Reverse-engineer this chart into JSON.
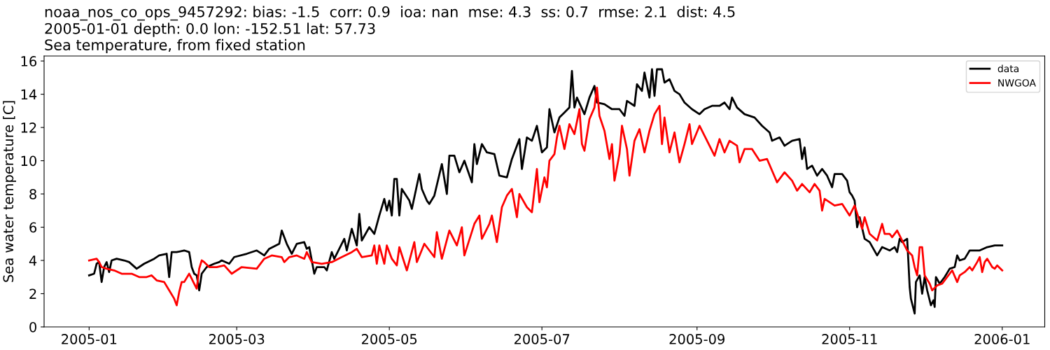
{
  "chart_data": {
    "type": "line",
    "title": "noaa_nos_co_ops_9457292: bias: -1.5  corr: 0.9  ioa: nan  mse: 4.3  ss: 0.7  rmse: 2.1  dist: 4.5\n2005-01-01 depth: 0.0 lon: -152.51 lat: 57.73\nSea temperature, from fixed station",
    "ylabel": "Sea water temperature [C]",
    "xlim": [
      "2004-12-14",
      "2006-01-18"
    ],
    "xticks": [
      {
        "value": "2005-01-01",
        "label": "2005-01"
      },
      {
        "value": "2005-03-01",
        "label": "2005-03"
      },
      {
        "value": "2005-05-01",
        "label": "2005-05"
      },
      {
        "value": "2005-07-01",
        "label": "2005-07"
      },
      {
        "value": "2005-09-01",
        "label": "2005-09"
      },
      {
        "value": "2005-11-01",
        "label": "2005-11"
      },
      {
        "value": "2006-01-01",
        "label": "2006-01"
      }
    ],
    "ylim": [
      0,
      16.3
    ],
    "yticks": [
      0,
      2,
      4,
      6,
      8,
      10,
      12,
      14,
      16
    ],
    "legend": "top right",
    "series": [
      {
        "name": "data",
        "color": "#000000",
        "x": [
          "2005-01-01",
          "2005-01-03",
          "2005-01-04",
          "2005-01-05",
          "2005-01-06",
          "2005-01-07",
          "2005-01-08",
          "2005-01-09",
          "2005-01-10",
          "2005-01-12",
          "2005-01-15",
          "2005-01-17",
          "2005-01-20",
          "2005-01-23",
          "2005-01-27",
          "2005-01-29",
          "2005-02-01",
          "2005-02-02",
          "2005-02-03",
          "2005-02-05",
          "2005-02-08",
          "2005-02-10",
          "2005-02-11",
          "2005-02-12",
          "2005-02-13",
          "2005-02-14",
          "2005-02-15",
          "2005-02-17",
          "2005-02-20",
          "2005-02-22",
          "2005-02-23",
          "2005-02-26",
          "2005-02-28",
          "2005-03-05",
          "2005-03-09",
          "2005-03-12",
          "2005-03-14",
          "2005-03-18",
          "2005-03-19",
          "2005-03-21",
          "2005-03-23",
          "2005-03-25",
          "2005-03-28",
          "2005-03-29",
          "2005-03-30",
          "2005-04-01",
          "2005-04-02",
          "2005-04-05",
          "2005-04-06",
          "2005-04-08",
          "2005-04-09",
          "2005-04-13",
          "2005-04-14",
          "2005-04-16",
          "2005-04-18",
          "2005-04-19",
          "2005-04-20",
          "2005-04-23",
          "2005-04-25",
          "2005-04-27",
          "2005-04-29",
          "2005-04-30",
          "2005-05-01",
          "2005-05-02",
          "2005-05-03",
          "2005-05-04",
          "2005-05-05",
          "2005-05-06",
          "2005-05-09",
          "2005-05-10",
          "2005-05-13",
          "2005-05-14",
          "2005-05-16",
          "2005-05-17",
          "2005-05-19",
          "2005-05-22",
          "2005-05-24",
          "2005-05-25",
          "2005-05-27",
          "2005-05-29",
          "2005-05-31",
          "2005-06-03",
          "2005-06-04",
          "2005-06-05",
          "2005-06-07",
          "2005-06-09",
          "2005-06-12",
          "2005-06-14",
          "2005-06-17",
          "2005-06-19",
          "2005-06-22",
          "2005-06-23",
          "2005-06-25",
          "2005-06-27",
          "2005-06-29",
          "2005-07-01",
          "2005-07-03",
          "2005-07-04",
          "2005-07-06",
          "2005-07-08",
          "2005-07-10",
          "2005-07-12",
          "2005-07-13",
          "2005-07-14",
          "2005-07-15",
          "2005-07-18",
          "2005-07-20",
          "2005-07-22",
          "2005-07-23",
          "2005-07-26",
          "2005-07-29",
          "2005-08-01",
          "2005-08-03",
          "2005-08-04",
          "2005-08-07",
          "2005-08-08",
          "2005-08-10",
          "2005-08-11",
          "2005-08-13",
          "2005-08-14",
          "2005-08-15",
          "2005-08-16",
          "2005-08-18",
          "2005-08-19",
          "2005-08-21",
          "2005-08-23",
          "2005-08-25",
          "2005-08-27",
          "2005-08-30",
          "2005-09-02",
          "2005-09-04",
          "2005-09-07",
          "2005-09-10",
          "2005-09-12",
          "2005-09-14",
          "2005-09-15",
          "2005-09-17",
          "2005-09-20",
          "2005-09-24",
          "2005-09-27",
          "2005-09-30",
          "2005-10-01",
          "2005-10-04",
          "2005-10-06",
          "2005-10-09",
          "2005-10-12",
          "2005-10-13",
          "2005-10-14",
          "2005-10-15",
          "2005-10-17",
          "2005-10-19",
          "2005-10-21",
          "2005-10-23",
          "2005-10-25",
          "2005-10-26",
          "2005-10-29",
          "2005-10-31",
          "2005-11-01",
          "2005-11-02",
          "2005-11-03",
          "2005-11-04",
          "2005-11-05",
          "2005-11-07",
          "2005-11-09",
          "2005-11-12",
          "2005-11-14",
          "2005-11-17",
          "2005-11-19",
          "2005-11-20",
          "2005-11-21",
          "2005-11-22",
          "2005-11-24",
          "2005-11-24T12:00",
          "2005-11-25",
          "2005-11-25T12:00",
          "2005-11-27",
          "2005-11-27T12:00",
          "2005-11-29",
          "2005-11-30",
          "2005-12-01",
          "2005-12-02",
          "2005-12-03T12:00",
          "2005-12-04T12:00",
          "2005-12-05",
          "2005-12-05T12:00",
          "2005-12-07",
          "2005-12-09",
          "2005-12-11",
          "2005-12-13",
          "2005-12-14",
          "2005-12-15",
          "2005-12-17",
          "2005-12-19",
          "2005-12-23",
          "2005-12-26",
          "2005-12-29",
          "2006-01-01"
        ],
        "values": [
          3.1,
          3.2,
          3.8,
          3.9,
          2.7,
          3.6,
          3.9,
          3.3,
          4.0,
          4.1,
          4.0,
          3.9,
          3.5,
          3.8,
          4.1,
          4.3,
          4.4,
          3.0,
          4.5,
          4.5,
          4.6,
          4.5,
          3.6,
          3.2,
          3.1,
          2.2,
          3.2,
          3.6,
          3.8,
          3.9,
          4.0,
          3.8,
          4.2,
          4.4,
          4.6,
          4.3,
          4.7,
          5.0,
          5.8,
          5.0,
          4.4,
          5.0,
          5.1,
          4.7,
          4.8,
          3.2,
          3.6,
          3.6,
          3.4,
          4.5,
          4.1,
          5.3,
          4.6,
          5.9,
          4.9,
          6.8,
          5.2,
          6.0,
          5.6,
          6.7,
          7.7,
          7.0,
          7.6,
          6.7,
          8.9,
          8.9,
          6.7,
          8.3,
          7.6,
          7.1,
          9.2,
          8.3,
          7.6,
          7.4,
          7.9,
          9.8,
          8.0,
          10.3,
          10.3,
          9.3,
          10.0,
          8.7,
          11.0,
          9.8,
          11.0,
          10.5,
          10.4,
          9.1,
          9.0,
          10.1,
          11.3,
          9.5,
          11.4,
          11.2,
          12.1,
          10.5,
          10.8,
          13.1,
          11.7,
          12.6,
          12.9,
          13.2,
          15.4,
          13.2,
          13.8,
          12.8,
          13.8,
          14.5,
          13.5,
          13.4,
          13.1,
          13.1,
          12.7,
          13.6,
          13.3,
          14.6,
          14.2,
          15.3,
          13.8,
          15.5,
          13.9,
          15.5,
          15.5,
          14.7,
          14.9,
          14.2,
          14.0,
          13.5,
          13.1,
          12.8,
          13.1,
          13.3,
          13.3,
          13.5,
          13.1,
          13.8,
          13.2,
          12.8,
          12.6,
          12.1,
          11.7,
          11.2,
          11.4,
          10.9,
          11.2,
          11.3,
          10.1,
          10.8,
          9.5,
          9.7,
          9.1,
          9.5,
          9.1,
          8.4,
          9.2,
          9.2,
          8.8,
          8.1,
          7.9,
          7.6,
          6.0,
          6.6,
          5.3,
          5.1,
          4.3,
          4.8,
          4.6,
          4.8,
          4.5,
          5.3,
          5.1,
          5.3,
          3.9,
          2.4,
          1.7,
          0.8,
          2.7,
          3.1,
          2.0,
          3.0,
          2.2,
          1.3,
          1.6,
          1.2,
          3.0,
          2.6,
          3.0,
          3.5,
          3.6,
          4.3,
          4.0,
          4.1,
          4.6,
          4.6,
          4.8,
          4.9,
          4.9
        ]
      },
      {
        "name": "NWGOA",
        "color": "#ff0000",
        "x": [
          "2005-01-01",
          "2005-01-04",
          "2005-01-05",
          "2005-01-06",
          "2005-01-08",
          "2005-01-11",
          "2005-01-14",
          "2005-01-18",
          "2005-01-21",
          "2005-01-24",
          "2005-01-26",
          "2005-01-28",
          "2005-01-31",
          "2005-02-02",
          "2005-02-04",
          "2005-02-05",
          "2005-02-06",
          "2005-02-07",
          "2005-02-08",
          "2005-02-10",
          "2005-02-11",
          "2005-02-12",
          "2005-02-13",
          "2005-02-14",
          "2005-02-15",
          "2005-02-16",
          "2005-02-18",
          "2005-02-21",
          "2005-02-24",
          "2005-02-27",
          "2005-03-03",
          "2005-03-09",
          "2005-03-12",
          "2005-03-15",
          "2005-03-19",
          "2005-03-20",
          "2005-03-22",
          "2005-03-25",
          "2005-03-28",
          "2005-03-29",
          "2005-03-31",
          "2005-04-04",
          "2005-04-08",
          "2005-04-12",
          "2005-04-16",
          "2005-04-18",
          "2005-04-20",
          "2005-04-24",
          "2005-04-25",
          "2005-04-26",
          "2005-04-27",
          "2005-04-29",
          "2005-04-30",
          "2005-05-02",
          "2005-05-04",
          "2005-05-05",
          "2005-05-08",
          "2005-05-11",
          "2005-05-12",
          "2005-05-15",
          "2005-05-19",
          "2005-05-20",
          "2005-05-22",
          "2005-05-25",
          "2005-05-28",
          "2005-05-30",
          "2005-05-31",
          "2005-06-04",
          "2005-06-06",
          "2005-06-07",
          "2005-06-10",
          "2005-06-11",
          "2005-06-13",
          "2005-06-15",
          "2005-06-17",
          "2005-06-19",
          "2005-06-21",
          "2005-06-22",
          "2005-06-25",
          "2005-06-27",
          "2005-06-29",
          "2005-06-30",
          "2005-07-02",
          "2005-07-03",
          "2005-07-04",
          "2005-07-06",
          "2005-07-07",
          "2005-07-08",
          "2005-07-10",
          "2005-07-12",
          "2005-07-14",
          "2005-07-16",
          "2005-07-17",
          "2005-07-18",
          "2005-07-20",
          "2005-07-22",
          "2005-07-23",
          "2005-07-24",
          "2005-07-26",
          "2005-07-28",
          "2005-07-29",
          "2005-07-30",
          "2005-08-01",
          "2005-08-02",
          "2005-08-04",
          "2005-08-05",
          "2005-08-07",
          "2005-08-09",
          "2005-08-11",
          "2005-08-13",
          "2005-08-15",
          "2005-08-17",
          "2005-08-18",
          "2005-08-19",
          "2005-08-21",
          "2005-08-23",
          "2005-08-25",
          "2005-08-27",
          "2005-08-29",
          "2005-08-30",
          "2005-09-02",
          "2005-09-04",
          "2005-09-08",
          "2005-09-10",
          "2005-09-12",
          "2005-09-14",
          "2005-09-17",
          "2005-09-18",
          "2005-09-20",
          "2005-09-23",
          "2005-09-26",
          "2005-09-29",
          "2005-10-03",
          "2005-10-06",
          "2005-10-09",
          "2005-10-11",
          "2005-10-13",
          "2005-10-16",
          "2005-10-18",
          "2005-10-20",
          "2005-10-21",
          "2005-10-22",
          "2005-10-26",
          "2005-10-29",
          "2005-11-01",
          "2005-11-03",
          "2005-11-06",
          "2005-11-07",
          "2005-11-09",
          "2005-11-12",
          "2005-11-14",
          "2005-11-15",
          "2005-11-17",
          "2005-11-18",
          "2005-11-20",
          "2005-11-22",
          "2005-11-24",
          "2005-11-26",
          "2005-11-27",
          "2005-11-28",
          "2005-11-29",
          "2005-11-30",
          "2005-12-01",
          "2005-12-03",
          "2005-12-04",
          "2005-12-06",
          "2005-12-08",
          "2005-12-11",
          "2005-12-12",
          "2005-12-14",
          "2005-12-15",
          "2005-12-17",
          "2005-12-19",
          "2005-12-20",
          "2005-12-22",
          "2005-12-23",
          "2005-12-24",
          "2005-12-25",
          "2005-12-26",
          "2005-12-28",
          "2005-12-29",
          "2005-12-30",
          "2006-01-01"
        ],
        "values": [
          4.0,
          4.1,
          3.9,
          3.6,
          3.5,
          3.4,
          3.2,
          3.2,
          3.0,
          3.0,
          3.1,
          2.8,
          2.7,
          2.2,
          1.7,
          1.3,
          2.1,
          2.7,
          2.7,
          3.2,
          2.9,
          2.6,
          2.3,
          3.5,
          4.0,
          3.9,
          3.6,
          3.6,
          3.7,
          3.2,
          3.6,
          3.5,
          4.1,
          4.3,
          4.2,
          3.9,
          4.2,
          4.3,
          4.1,
          4.5,
          3.9,
          3.8,
          3.9,
          4.2,
          4.5,
          4.7,
          4.2,
          4.3,
          4.9,
          3.8,
          4.9,
          3.8,
          4.9,
          4.1,
          3.7,
          4.8,
          3.4,
          5.1,
          3.9,
          5.0,
          4.2,
          5.7,
          4.1,
          5.8,
          4.9,
          6.0,
          4.3,
          6.2,
          6.7,
          5.3,
          6.2,
          6.7,
          5.1,
          7.2,
          7.9,
          8.3,
          6.6,
          8.0,
          7.2,
          6.9,
          9.5,
          7.5,
          9.0,
          8.4,
          10.0,
          10.4,
          11.4,
          12.1,
          10.7,
          12.2,
          11.6,
          13.1,
          11.0,
          10.6,
          12.5,
          13.2,
          14.4,
          12.7,
          11.8,
          10.1,
          11.0,
          8.8,
          10.4,
          12.1,
          10.7,
          9.1,
          11.2,
          11.9,
          10.5,
          11.8,
          12.8,
          13.3,
          11.0,
          12.6,
          10.5,
          11.7,
          9.9,
          11.0,
          12.2,
          11.0,
          12.1,
          11.5,
          10.3,
          11.3,
          10.5,
          11.2,
          10.9,
          9.9,
          10.7,
          10.7,
          10.0,
          10.1,
          8.7,
          9.3,
          8.8,
          8.2,
          8.6,
          8.1,
          8.6,
          8.2,
          7.0,
          7.7,
          7.3,
          7.4,
          6.7,
          7.3,
          5.9,
          6.6,
          5.6,
          5.2,
          6.2,
          5.6,
          5.6,
          5.4,
          5.8,
          5.2,
          4.6,
          4.3,
          3.6,
          3.1,
          4.8,
          4.8,
          3.1,
          2.6,
          2.2,
          2.5,
          2.6,
          3.2,
          3.4,
          2.7,
          3.1,
          3.3,
          3.6,
          3.4,
          3.9,
          4.2,
          3.3,
          3.9,
          4.1,
          3.6,
          3.5,
          3.7,
          3.4
        ]
      }
    ]
  }
}
